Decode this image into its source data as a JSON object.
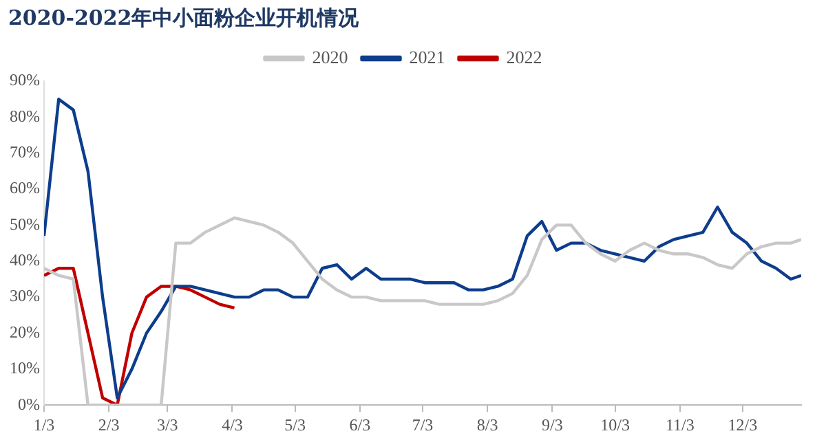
{
  "chart_data": {
    "type": "line",
    "title": "2020-2022年中小面粉企业开机情况",
    "x": [
      "--01-03",
      "--01-10",
      "--01-17",
      "--01-24",
      "--01-31",
      "--02-07",
      "--02-14",
      "--02-21",
      "--02-28",
      "--03-07",
      "--03-14",
      "--03-21",
      "--03-28",
      "--04-04",
      "--04-11",
      "--04-18",
      "--04-25",
      "--05-02",
      "--05-09",
      "--05-16",
      "--05-23",
      "--05-30",
      "--06-06",
      "--06-13",
      "--06-20",
      "--06-27",
      "--07-04",
      "--07-11",
      "--07-18",
      "--07-25",
      "--08-01",
      "--08-08",
      "--08-15",
      "--08-22",
      "--08-29",
      "--09-05",
      "--09-12",
      "--09-19",
      "--09-26",
      "--10-03",
      "--10-10",
      "--10-17",
      "--10-24",
      "--10-31",
      "--11-07",
      "--11-14",
      "--11-21",
      "--11-28",
      "--12-05",
      "--12-12",
      "--12-19",
      "--12-26",
      "--12-31"
    ],
    "series": [
      {
        "name": "2020",
        "color": "#c8c8c8",
        "values": [
          38,
          36,
          35,
          0,
          0,
          0,
          0,
          0,
          0,
          45,
          45,
          48,
          50,
          52,
          51,
          50,
          48,
          45,
          40,
          35,
          32,
          30,
          30,
          29,
          29,
          29,
          29,
          28,
          28,
          28,
          28,
          29,
          31,
          36,
          46,
          50,
          50,
          45,
          42,
          40,
          43,
          45,
          43,
          42,
          42,
          41,
          39,
          38,
          42,
          44,
          45,
          45,
          46
        ]
      },
      {
        "name": "2021",
        "color": "#0d3d8c",
        "values": [
          47,
          85,
          82,
          65,
          30,
          2,
          10,
          20,
          26,
          33,
          33,
          32,
          31,
          30,
          30,
          32,
          32,
          30,
          30,
          38,
          39,
          35,
          38,
          35,
          35,
          35,
          34,
          34,
          34,
          32,
          32,
          33,
          35,
          47,
          51,
          43,
          45,
          45,
          43,
          42,
          41,
          40,
          44,
          46,
          47,
          48,
          55,
          48,
          45,
          40,
          38,
          35,
          36
        ]
      },
      {
        "name": "2022",
        "color": "#c00000",
        "values": [
          36,
          38,
          38,
          20,
          2,
          0,
          20,
          30,
          33,
          33,
          32,
          30,
          28,
          27,
          null,
          null,
          null,
          null,
          null,
          null,
          null,
          null,
          null,
          null,
          null,
          null,
          null,
          null,
          null,
          null,
          null,
          null,
          null,
          null,
          null,
          null,
          null,
          null,
          null,
          null,
          null,
          null,
          null,
          null,
          null,
          null,
          null,
          null,
          null,
          null,
          null,
          null,
          null
        ]
      }
    ],
    "xlim": [
      "--01-03",
      "--12-31"
    ],
    "xticks": [
      {
        "value": "--01-03",
        "label": "1/3"
      },
      {
        "value": "--02-03",
        "label": "2/3"
      },
      {
        "value": "--03-03",
        "label": "3/3"
      },
      {
        "value": "--04-03",
        "label": "4/3"
      },
      {
        "value": "--05-03",
        "label": "5/3"
      },
      {
        "value": "--06-03",
        "label": "6/3"
      },
      {
        "value": "--07-03",
        "label": "7/3"
      },
      {
        "value": "--08-03",
        "label": "8/3"
      },
      {
        "value": "--09-03",
        "label": "9/3"
      },
      {
        "value": "--10-03",
        "label": "10/3"
      },
      {
        "value": "--11-03",
        "label": "11/3"
      },
      {
        "value": "--12-03",
        "label": "12/3"
      }
    ],
    "ylim": [
      0,
      90
    ],
    "yticks": [
      {
        "value": 0,
        "label": "0%"
      },
      {
        "value": 10,
        "label": "10%"
      },
      {
        "value": 20,
        "label": "20%"
      },
      {
        "value": 30,
        "label": "30%"
      },
      {
        "value": 40,
        "label": "40%"
      },
      {
        "value": 50,
        "label": "50%"
      },
      {
        "value": 60,
        "label": "60%"
      },
      {
        "value": 70,
        "label": "70%"
      },
      {
        "value": 80,
        "label": "80%"
      },
      {
        "value": 90,
        "label": "90%"
      }
    ],
    "grid": false,
    "legend": "top",
    "marker": "none",
    "line_style": "solid"
  }
}
